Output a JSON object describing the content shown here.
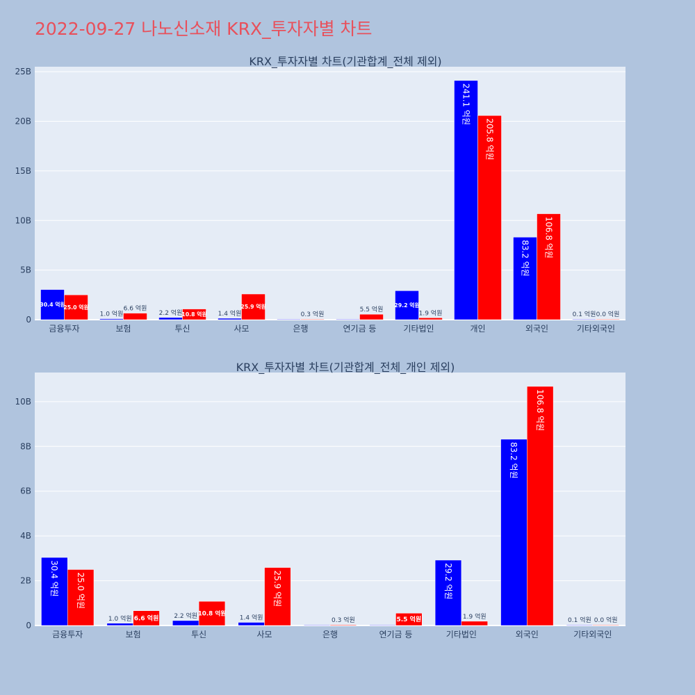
{
  "page": {
    "title": "2022-09-27 나노신소재 KRX_투자자별 차트"
  },
  "colors": {
    "background": "#b0c4de",
    "plot_bg": "#e5ecf6",
    "series_1": "#0000ff",
    "series_2": "#ff0000",
    "title": "#e8505b"
  },
  "chart_data": [
    {
      "type": "bar",
      "title": "KRX_투자자별 차트(기관합계_전체 제외)",
      "categories": [
        "금융투자",
        "보험",
        "투신",
        "사모",
        "은행",
        "연기금 등",
        "기타법인",
        "개인",
        "외국인",
        "기타외국인"
      ],
      "series": [
        {
          "values": [
            3.04,
            0.1,
            0.22,
            0.14,
            0.0,
            0.0,
            2.92,
            24.11,
            8.32,
            0.01
          ],
          "labels": [
            "30.4 억원",
            "1.0 억원",
            "2.2 억원",
            "1.4 억원",
            "",
            "",
            "29.2 억원",
            "241.1 억원",
            "83.2 억원",
            "0.1 억원"
          ]
        },
        {
          "values": [
            2.5,
            0.66,
            1.08,
            2.59,
            0.03,
            0.55,
            0.19,
            20.58,
            10.68,
            0.0
          ],
          "labels": [
            "25.0 억원",
            "6.6 억원",
            "10.8 억원",
            "25.9 억원",
            "0.3 억원",
            "5.5 억원",
            "1.9 억원",
            "205.8 억원",
            "106.8 억원",
            "0.0 억원"
          ]
        }
      ],
      "ylim": [
        0,
        25.5
      ],
      "yticks": [
        0,
        5,
        10,
        15,
        20,
        25
      ],
      "ytick_labels": [
        "0",
        "5B",
        "10B",
        "15B",
        "20B",
        "25B"
      ],
      "grid": true
    },
    {
      "type": "bar",
      "title": "KRX_투자자별 차트(기관합계_전체_개인 제외)",
      "categories": [
        "금융투자",
        "보험",
        "투신",
        "사모",
        "은행",
        "연기금 등",
        "기타법인",
        "외국인",
        "기타외국인"
      ],
      "series": [
        {
          "values": [
            3.04,
            0.1,
            0.22,
            0.14,
            0.0,
            0.0,
            2.92,
            8.32,
            0.01
          ],
          "labels": [
            "30.4 억원",
            "1.0 억원",
            "2.2 억원",
            "1.4 억원",
            "",
            "",
            "29.2 억원",
            "83.2 억원",
            "0.1 억원"
          ]
        },
        {
          "values": [
            2.5,
            0.66,
            1.08,
            2.59,
            0.03,
            0.55,
            0.19,
            10.68,
            0.0
          ],
          "labels": [
            "25.0 억원",
            "6.6 억원",
            "10.8 억원",
            "25.9 억원",
            "0.3 억원",
            "5.5 억원",
            "1.9 억원",
            "106.8 억원",
            "0.0 억원"
          ]
        }
      ],
      "ylim": [
        0,
        11.3
      ],
      "yticks": [
        0,
        2,
        4,
        6,
        8,
        10
      ],
      "ytick_labels": [
        "0",
        "2B",
        "4B",
        "6B",
        "8B",
        "10B"
      ],
      "grid": true
    }
  ]
}
